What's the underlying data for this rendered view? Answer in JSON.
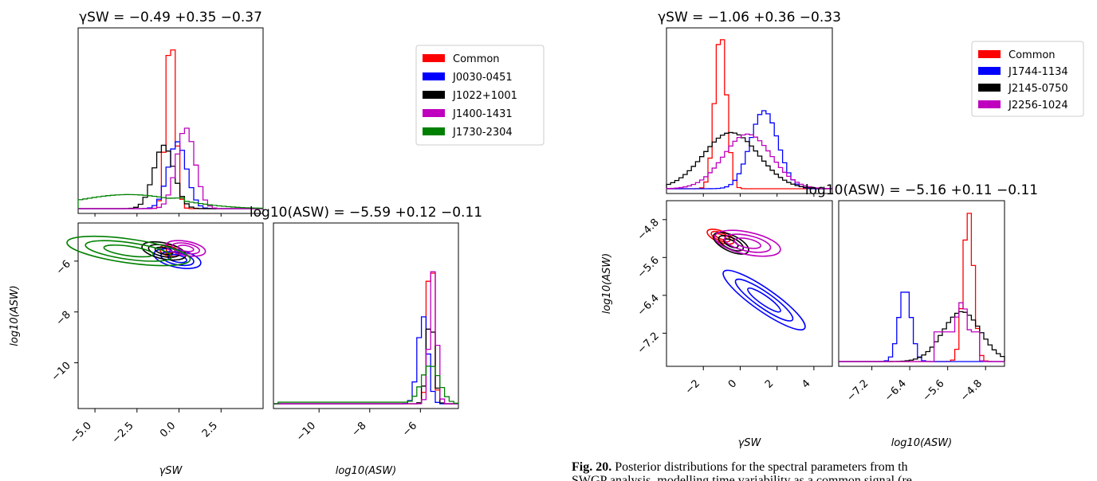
{
  "chart_data": [
    {
      "type": "corner",
      "params": [
        "γ_SW",
        "log10(A_SW)"
      ],
      "diag_titles": [
        "γSW = −0.49 +0.35 −0.37",
        "log10(ASW) = −5.59 +0.12 −0.11"
      ],
      "xlabel": "γSW",
      "ylabel": "log10(ASW)",
      "xlabel2": "log10(ASW)",
      "gamma_ticks": [
        "-5.0",
        "-2.5",
        "0.0",
        "2.5"
      ],
      "logA_ticks": [
        "-10",
        "-8",
        "-6"
      ],
      "gamma_range": [
        -6,
        5
      ],
      "logA_range": [
        -11.8,
        -4.5
      ],
      "series": [
        {
          "name": "Common",
          "color": "#ff0000",
          "gamma_mean": -0.49,
          "logA_mean": -5.59
        },
        {
          "name": "J0030-0451",
          "color": "#0000ff",
          "gamma_mean": -0.1,
          "logA_mean": -5.9
        },
        {
          "name": "J1022+1001",
          "color": "#000000",
          "gamma_mean": -0.9,
          "logA_mean": -5.6
        },
        {
          "name": "J1400-1431",
          "color": "#bf00bf",
          "gamma_mean": 0.4,
          "logA_mean": -5.5
        },
        {
          "name": "J1730-2304",
          "color": "#008000",
          "gamma_mean": -3.0,
          "logA_mean": -5.6
        }
      ]
    },
    {
      "type": "corner",
      "params": [
        "γ_SW",
        "log10(A_SW)"
      ],
      "diag_titles": [
        "γSW = −1.06 +0.36 −0.33",
        "log10(ASW) = −5.16 +0.11 −0.11"
      ],
      "xlabel": "γSW",
      "ylabel": "log10(ASW)",
      "xlabel2": "log10(ASW)",
      "gamma_ticks": [
        "-2",
        "0",
        "2",
        "4"
      ],
      "logA_ticks": [
        "-7.2",
        "-6.4",
        "-5.6",
        "-4.8"
      ],
      "gamma_range": [
        -4,
        5
      ],
      "logA_range": [
        -7.9,
        -4.4
      ],
      "series": [
        {
          "name": "Common",
          "color": "#ff0000",
          "gamma_mean": -1.06,
          "logA_mean": -5.16
        },
        {
          "name": "J1744-1134",
          "color": "#0000ff",
          "gamma_mean": 1.3,
          "logA_mean": -6.5
        },
        {
          "name": "J2145-0750",
          "color": "#000000",
          "gamma_mean": -0.5,
          "logA_mean": -5.3
        },
        {
          "name": "J2256-1024",
          "color": "#bf00bf",
          "gamma_mean": 0.4,
          "logA_mean": -5.3
        }
      ]
    }
  ],
  "caption": {
    "label": "Fig. 20.",
    "line1": "Posterior distributions for the spectral parameters from th",
    "line2": "SWGP analysis, modelling time variability as a common signal (re"
  }
}
